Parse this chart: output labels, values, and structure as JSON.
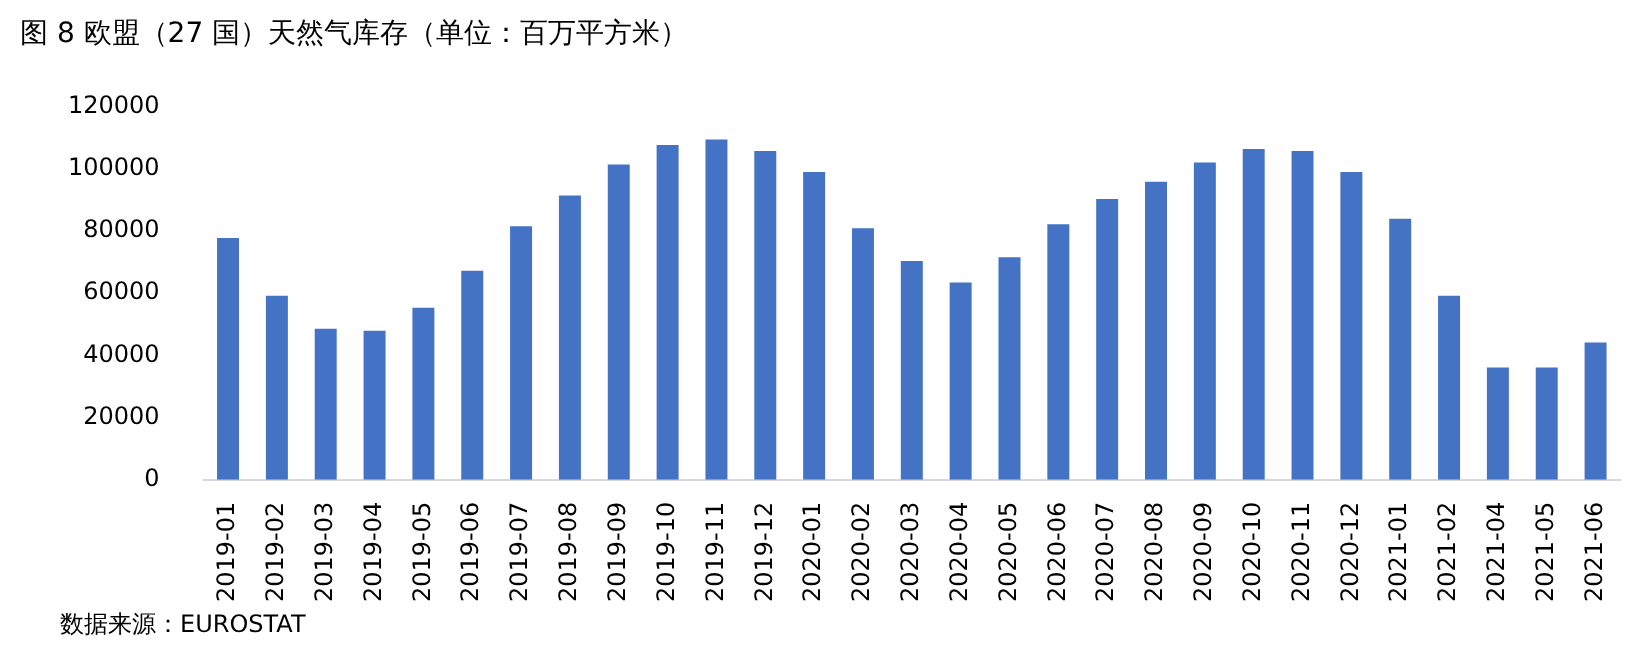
{
  "chart_data": {
    "type": "bar",
    "title": "图 8  欧盟（27 国）天然气库存（单位：百万平方米）",
    "categories": [
      "2019-01",
      "2019-02",
      "2019-03",
      "2019-04",
      "2019-05",
      "2019-06",
      "2019-07",
      "2019-08",
      "2019-09",
      "2019-10",
      "2019-11",
      "2019-12",
      "2020-01",
      "2020-02",
      "2020-03",
      "2020-04",
      "2020-05",
      "2020-06",
      "2020-07",
      "2020-08",
      "2020-09",
      "2020-10",
      "2020-11",
      "2020-12",
      "2021-01",
      "2021-02",
      "2021-04",
      "2021-05",
      "2021-06"
    ],
    "values": [
      77700,
      59100,
      48500,
      47900,
      55300,
      67200,
      81500,
      91400,
      101300,
      107600,
      109400,
      105700,
      98900,
      80800,
      70300,
      63400,
      71500,
      82100,
      90200,
      95800,
      102000,
      106300,
      105700,
      98900,
      83900,
      59100,
      36100,
      36100,
      44100
    ],
    "color": "#4472c4",
    "ylim": [
      0,
      120000
    ],
    "yticks": [
      0,
      20000,
      40000,
      60000,
      80000,
      100000,
      120000
    ],
    "grid": false,
    "legend": false,
    "annotations": [
      "数据来源：EUROSTAT"
    ]
  }
}
